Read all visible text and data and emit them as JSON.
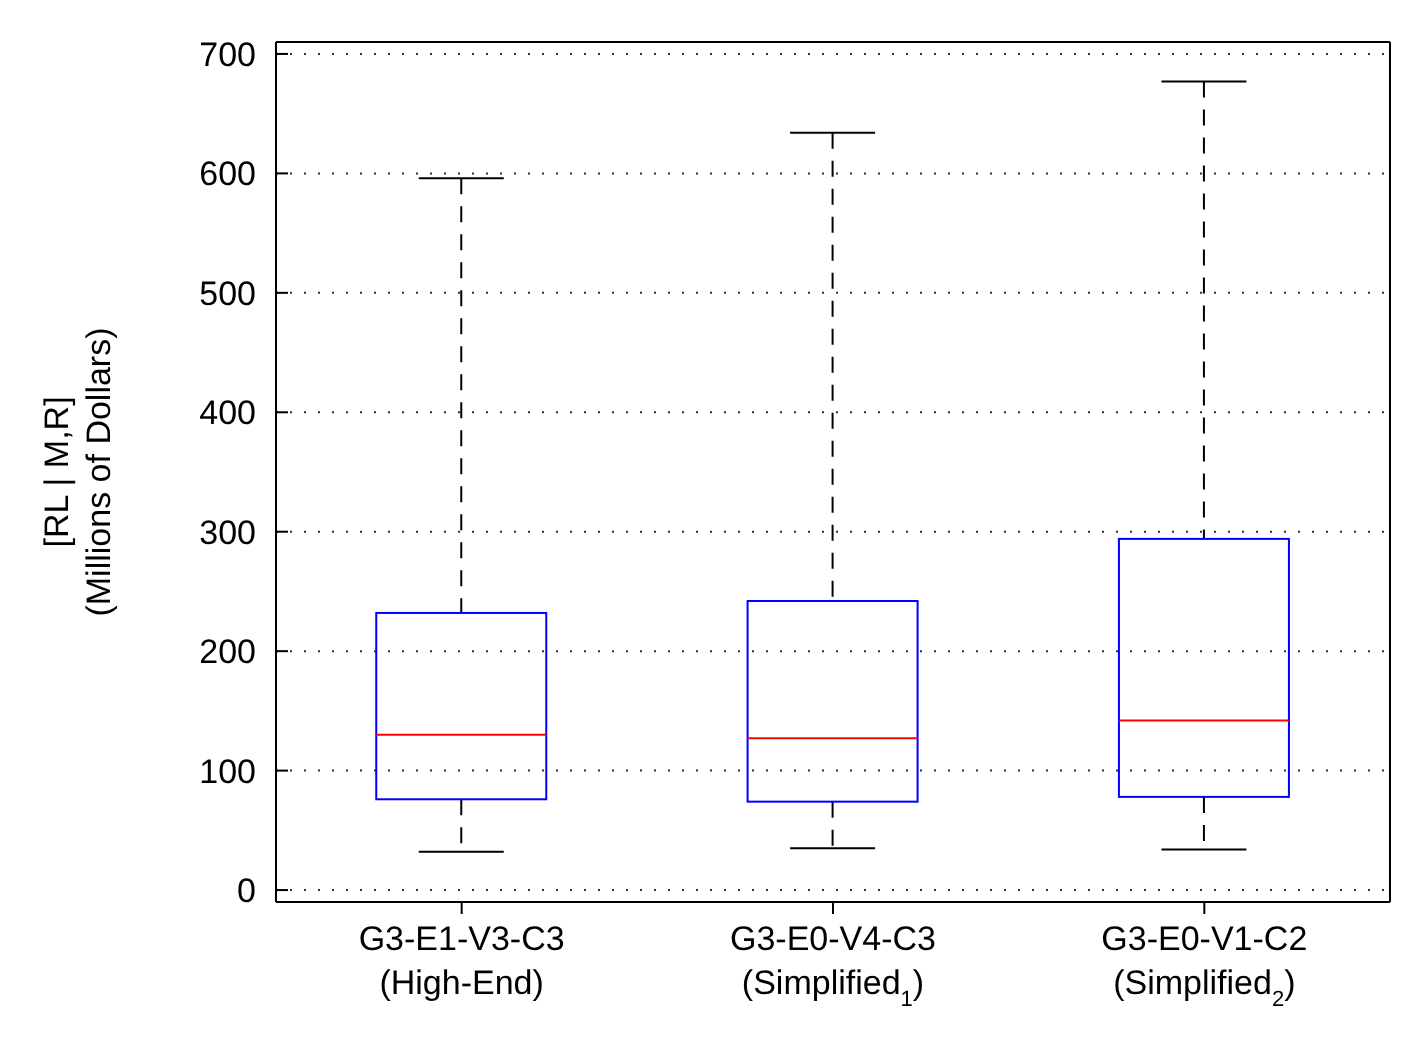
{
  "chart_data": {
    "type": "box",
    "ylabel": "[RL | M,R]\n(Millions of Dollars)",
    "categories": [
      "G3-E1-V3-C3\n(High-End)",
      "G3-E0-V4-C3\n(Simplified$_{1}$)",
      "G3-E0-V1-C2\n(Simplified$_{2}$)"
    ],
    "series": [
      {
        "color": "#0000ff",
        "boxes": [
          {
            "low": 32,
            "q1": 76,
            "median": 130,
            "q3": 232,
            "high": 596
          },
          {
            "low": 35,
            "q1": 74,
            "median": 127,
            "q3": 242,
            "high": 634
          },
          {
            "low": 34,
            "q1": 78,
            "median": 142,
            "q3": 294,
            "high": 677
          }
        ]
      }
    ],
    "ylim": [
      -10,
      710
    ],
    "yticks": [
      0,
      100,
      200,
      300,
      400,
      500,
      600,
      700
    ],
    "grid": "y",
    "line_style": "dashed"
  }
}
